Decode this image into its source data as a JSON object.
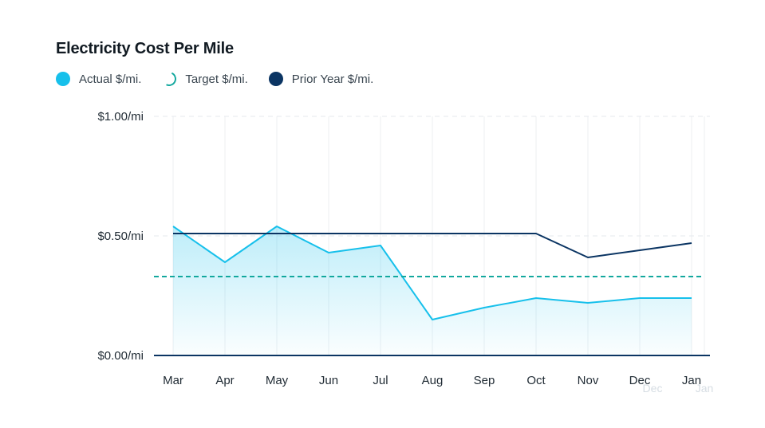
{
  "chart_data": {
    "type": "line",
    "title": "Electricity Cost Per Mile",
    "categories": [
      "Mar",
      "Apr",
      "May",
      "Jun",
      "Jul",
      "Aug",
      "Sep",
      "Oct",
      "Nov",
      "Dec",
      "Jan"
    ],
    "ghost_categories": [
      "Dec",
      "Jan"
    ],
    "y_ticks": [
      {
        "value": 1.0,
        "label": "$1.00/mi"
      },
      {
        "value": 0.5,
        "label": "$0.50/mi"
      },
      {
        "value": 0.0,
        "label": "$0.00/mi"
      }
    ],
    "ylim": [
      0,
      1.0
    ],
    "series": [
      {
        "name": "Actual $/mi.",
        "color": "#17c0eb",
        "style": "area",
        "values": [
          0.54,
          0.39,
          0.54,
          0.43,
          0.46,
          0.15,
          0.2,
          0.24,
          0.22,
          0.24,
          0.24
        ]
      },
      {
        "name": "Target $/mi.",
        "color": "#13a89e",
        "style": "dashed-constant",
        "values": [
          0.33,
          0.33,
          0.33,
          0.33,
          0.33,
          0.33,
          0.33,
          0.33,
          0.33,
          0.33,
          0.33
        ]
      },
      {
        "name": "Prior Year $/mi.",
        "color": "#0b3563",
        "style": "line",
        "values": [
          0.51,
          0.51,
          0.51,
          0.51,
          0.51,
          0.51,
          0.51,
          0.51,
          0.41,
          0.44,
          0.47
        ]
      }
    ],
    "grid": true,
    "legend_position": "top-left"
  }
}
